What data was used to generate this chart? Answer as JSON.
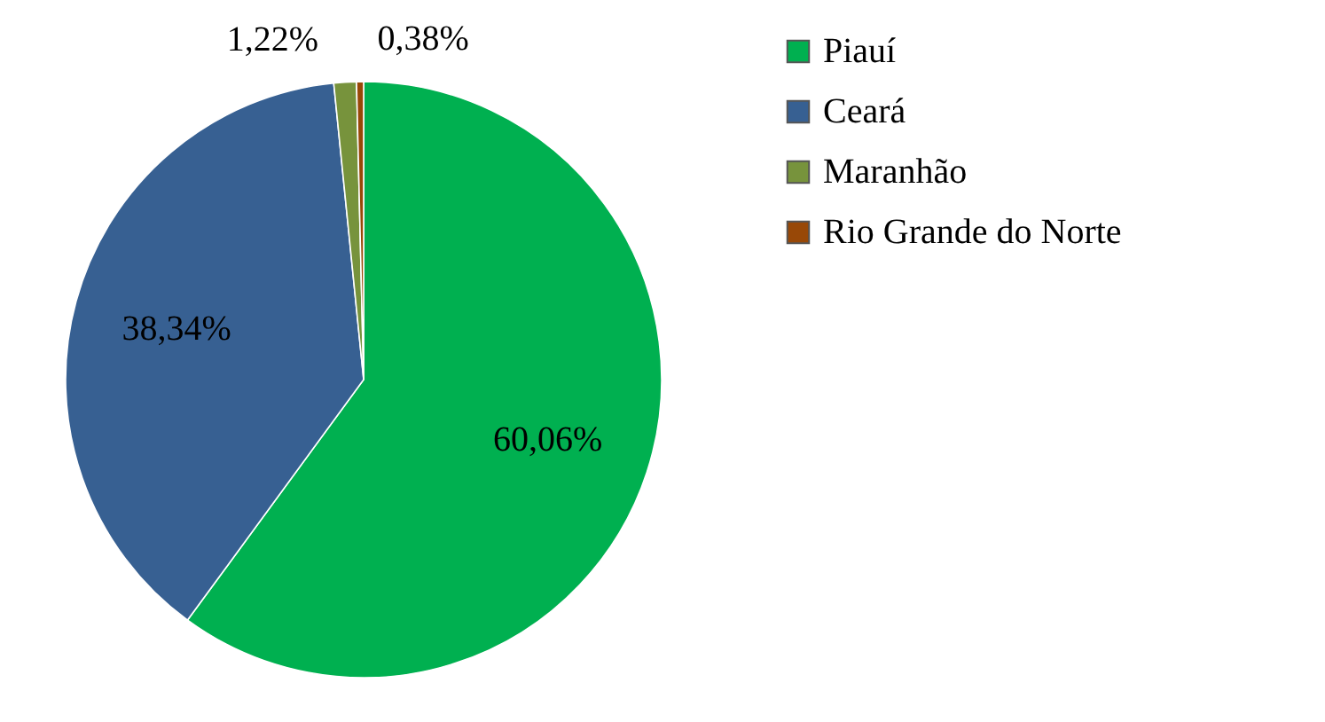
{
  "chart_data": {
    "type": "pie",
    "categories": [
      "Piauí",
      "Ceará",
      "Maranhão",
      "Rio Grande do Norte"
    ],
    "values": [
      60.06,
      38.34,
      1.22,
      0.38
    ],
    "colors": [
      "#00b050",
      "#376092",
      "#77933c",
      "#984807"
    ],
    "value_labels": [
      "60,06%",
      "38,34%",
      "1,22%",
      "0,38%"
    ],
    "legend": "right"
  }
}
